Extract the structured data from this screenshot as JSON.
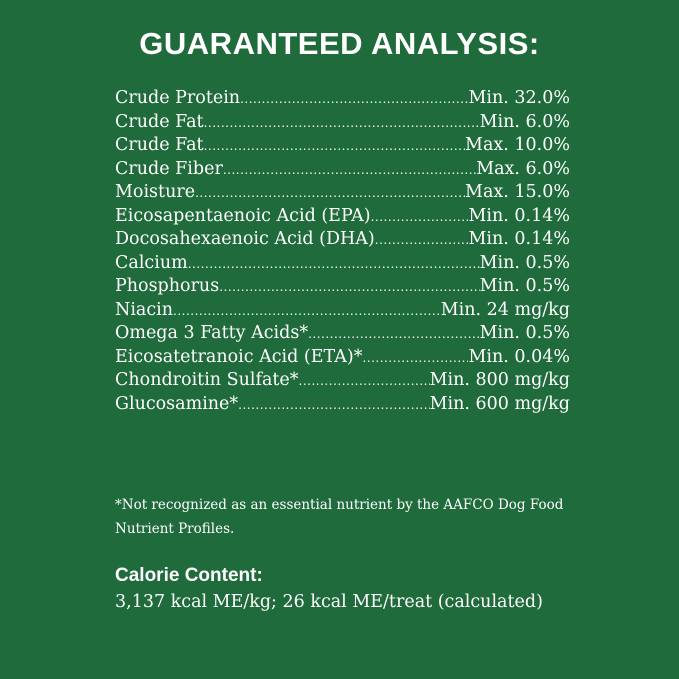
{
  "title": "GUARANTEED ANALYSIS:",
  "rows": [
    {
      "name": "Crude Protein",
      "value": "Min. 32.0%"
    },
    {
      "name": "Crude Fat",
      "value": "Min. 6.0%"
    },
    {
      "name": "Crude Fat",
      "value": "Max. 10.0%"
    },
    {
      "name": "Crude Fiber",
      "value": "Max. 6.0%"
    },
    {
      "name": "Moisture",
      "value": "Max. 15.0%"
    },
    {
      "name": "Eicosapentaenoic Acid (EPA)",
      "value": "Min. 0.14%"
    },
    {
      "name": "Docosahexaenoic Acid (DHA)",
      "value": "Min. 0.14%"
    },
    {
      "name": "Calcium",
      "value": "Min. 0.5%"
    },
    {
      "name": "Phosphorus",
      "value": "Min. 0.5%"
    },
    {
      "name": "Niacin",
      "value": "Min. 24 mg/kg"
    },
    {
      "name": "Omega 3 Fatty Acids*",
      "value": "Min. 0.5%"
    },
    {
      "name": "Eicosatetranoic Acid (ETA)*",
      "value": "Min. 0.04%"
    },
    {
      "name": "Chondroitin Sulfate*",
      "value": "Min. 800 mg/kg"
    },
    {
      "name": "Glucosamine*",
      "value": "Min. 600 mg/kg"
    }
  ],
  "footnote": "*Not recognized as an essential nutrient by the AAFCO Dog Food Nutrient Profiles.",
  "calorie": {
    "heading": "Calorie Content:",
    "text": "3,137 kcal ME/kg; 26 kcal ME/treat (calculated)"
  },
  "colors": {
    "background": "#1f6b3b",
    "text": "#ffffff"
  }
}
